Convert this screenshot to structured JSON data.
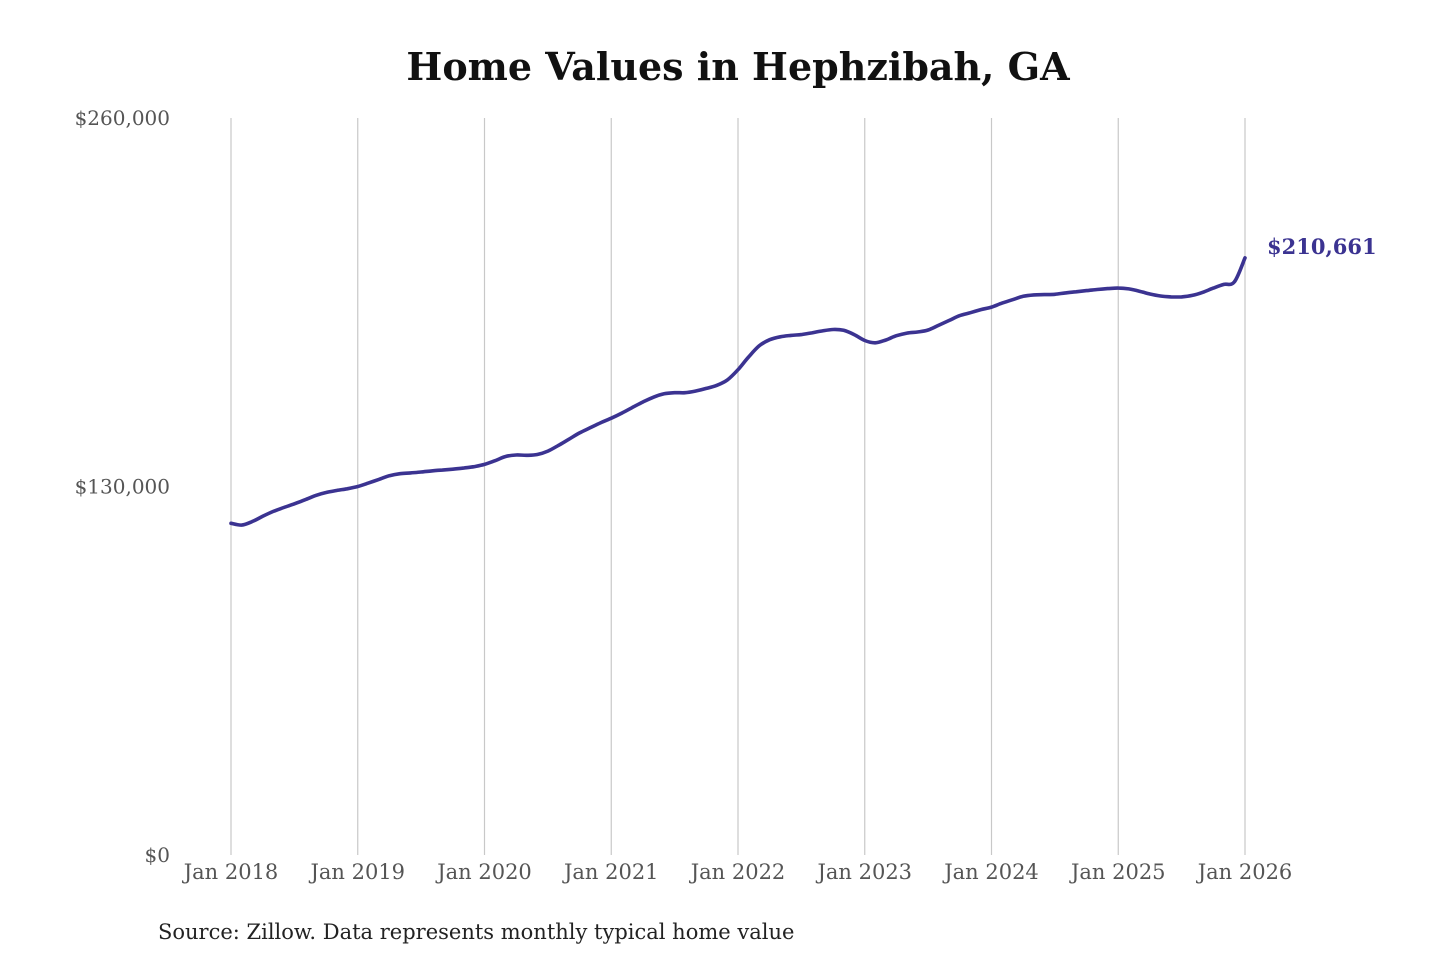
{
  "chart_data": {
    "type": "line",
    "title": "Home Values in Hephzibah, GA",
    "source": "Source: Zillow. Data represents monthly typical home value",
    "y_ticks": [
      "$260,000",
      "$130,000",
      "$0"
    ],
    "ylim": [
      0,
      260000
    ],
    "x_ticks": [
      "Jan 2018",
      "Jan 2019",
      "Jan 2020",
      "Jan 2021",
      "Jan 2022",
      "Jan 2023",
      "Jan 2024",
      "Jan 2025",
      "Jan 2026"
    ],
    "grid": "vertical",
    "line_color": "#3b3391",
    "end_label": "$210,661",
    "series": [
      {
        "x": [
          "2018-01",
          "2018-02",
          "2018-03",
          "2018-04",
          "2018-05",
          "2018-06",
          "2018-07",
          "2018-08",
          "2018-09",
          "2018-10",
          "2018-11",
          "2018-12",
          "2019-01",
          "2019-02",
          "2019-03",
          "2019-04",
          "2019-05",
          "2019-06",
          "2019-07",
          "2019-08",
          "2019-09",
          "2019-10",
          "2019-11",
          "2019-12",
          "2020-01",
          "2020-02",
          "2020-03",
          "2020-04",
          "2020-05",
          "2020-06",
          "2020-07",
          "2020-08",
          "2020-09",
          "2020-10",
          "2020-11",
          "2020-12",
          "2021-01",
          "2021-02",
          "2021-03",
          "2021-04",
          "2021-05",
          "2021-06",
          "2021-07",
          "2021-08",
          "2021-09",
          "2021-10",
          "2021-11",
          "2021-12",
          "2022-01",
          "2022-02",
          "2022-03",
          "2022-04",
          "2022-05",
          "2022-06",
          "2022-07",
          "2022-08",
          "2022-09",
          "2022-10",
          "2022-11",
          "2022-12",
          "2023-01",
          "2023-02",
          "2023-03",
          "2023-04",
          "2023-05",
          "2023-06",
          "2023-07",
          "2023-08",
          "2023-09",
          "2023-10",
          "2023-11",
          "2023-12",
          "2024-01",
          "2024-02",
          "2024-03",
          "2024-04",
          "2024-05",
          "2024-06",
          "2024-07",
          "2024-08",
          "2024-09",
          "2024-10",
          "2024-11",
          "2024-12",
          "2025-01",
          "2025-02",
          "2025-03",
          "2025-04",
          "2025-05",
          "2025-06",
          "2025-07",
          "2025-08",
          "2025-09",
          "2025-10",
          "2025-11",
          "2025-12",
          "2026-01"
        ],
        "values": [
          117000,
          116400,
          117600,
          119500,
          121200,
          122600,
          123900,
          125300,
          126800,
          127900,
          128600,
          129200,
          130000,
          131200,
          132500,
          133800,
          134500,
          134800,
          135100,
          135500,
          135800,
          136100,
          136500,
          137000,
          137800,
          139100,
          140600,
          141100,
          141000,
          141300,
          142500,
          144500,
          146700,
          148900,
          150700,
          152500,
          154100,
          155900,
          157900,
          159800,
          161500,
          162700,
          163100,
          163100,
          163700,
          164600,
          165700,
          167600,
          171200,
          175700,
          179600,
          181800,
          182800,
          183300,
          183600,
          184200,
          184900,
          185400,
          185100,
          183600,
          181500,
          180700,
          181700,
          183200,
          184100,
          184500,
          185200,
          186900,
          188600,
          190300,
          191300,
          192400,
          193300,
          194700,
          195900,
          197100,
          197600,
          197700,
          197800,
          198300,
          198700,
          199100,
          199500,
          199800,
          200000,
          199700,
          198900,
          197900,
          197200,
          196900,
          196900,
          197400,
          198500,
          200000,
          201300,
          202200,
          210661
        ]
      }
    ]
  }
}
